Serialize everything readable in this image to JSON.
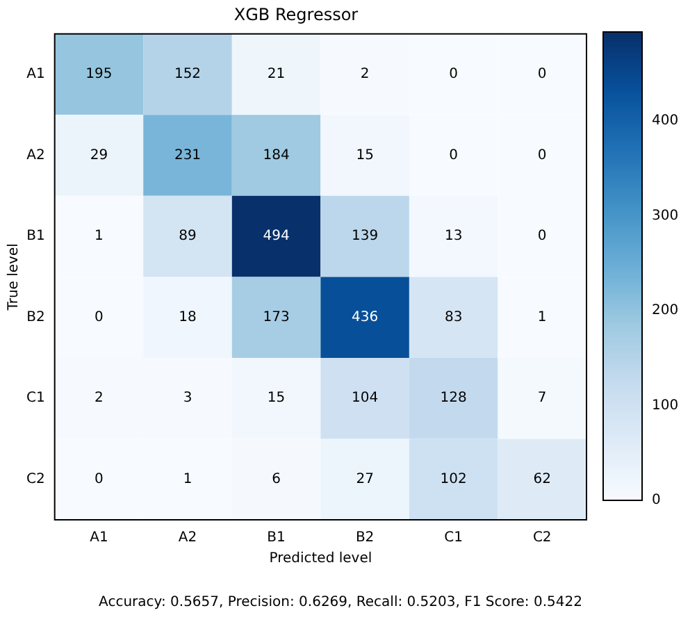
{
  "chart_data": {
    "type": "heatmap",
    "title": "XGB Regressor",
    "xlabel": "Predicted level",
    "ylabel": "True level",
    "categories": [
      "A1",
      "A2",
      "B1",
      "B2",
      "C1",
      "C2"
    ],
    "y_categories": [
      "A1",
      "A2",
      "B1",
      "B2",
      "C1",
      "C2"
    ],
    "cells": [
      [
        195,
        152,
        21,
        2,
        0,
        0
      ],
      [
        29,
        231,
        184,
        15,
        0,
        0
      ],
      [
        1,
        89,
        494,
        139,
        13,
        0
      ],
      [
        0,
        18,
        173,
        436,
        83,
        1
      ],
      [
        2,
        3,
        15,
        104,
        128,
        7
      ],
      [
        0,
        1,
        6,
        27,
        102,
        62
      ]
    ],
    "data_labels": true,
    "clim": [
      0,
      494
    ],
    "cticks": [
      0,
      100,
      200,
      300,
      400
    ],
    "annotations": [
      "Accuracy: 0.5657, Precision: 0.6269, Recall: 0.5203, F1 Score: 0.5422"
    ]
  }
}
